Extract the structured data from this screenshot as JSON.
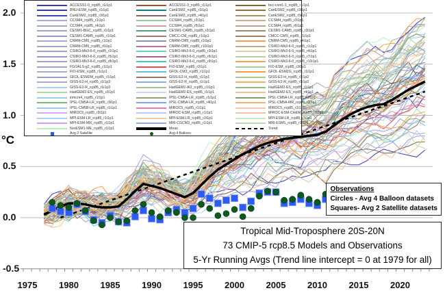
{
  "chart_data": {
    "type": "line",
    "title": [
      "Tropical Mid-Troposphere 20S-20N",
      "73 CMIP-5 rcp8.5 Models and Observations",
      "5-Yr Running Avgs (Trend line intercept = 0 at 1979 for all)"
    ],
    "ylabel": "°C",
    "xlabel": "",
    "xlim": [
      1975,
      2024
    ],
    "ylim": [
      -0.5,
      2.0
    ],
    "xticks": [
      "1975",
      "1980",
      "1985",
      "1990",
      "1995",
      "2000",
      "2005",
      "2010",
      "2015",
      "2020"
    ],
    "yticks": [
      "2.0",
      "1.5",
      "1.0",
      "0.5",
      "0.0",
      "-0.5"
    ],
    "grid": true,
    "legend_placement": "top-left",
    "mean": {
      "name": "Mean",
      "color": "#000000",
      "x": [
        1977,
        1978,
        1979,
        1980,
        1981,
        1982,
        1983,
        1984,
        1985,
        1986,
        1987,
        1988,
        1989,
        1990,
        1991,
        1992,
        1993,
        1994,
        1995,
        1996,
        1997,
        1998,
        1999,
        2000,
        2001,
        2002,
        2003,
        2004,
        2005,
        2006,
        2007,
        2008,
        2009,
        2010,
        2011,
        2012,
        2013,
        2014,
        2015,
        2016,
        2017,
        2018,
        2019,
        2020,
        2021,
        2022,
        2023
      ],
      "y": [
        0.03,
        0.07,
        0.11,
        0.14,
        0.14,
        0.13,
        0.11,
        0.1,
        0.1,
        0.11,
        0.18,
        0.26,
        0.33,
        0.31,
        0.29,
        0.26,
        0.23,
        0.2,
        0.24,
        0.32,
        0.4,
        0.47,
        0.52,
        0.57,
        0.62,
        0.66,
        0.7,
        0.73,
        0.75,
        0.77,
        0.78,
        0.79,
        0.8,
        0.81,
        0.84,
        0.9,
        0.96,
        1.01,
        1.05,
        1.08,
        1.1,
        1.11,
        1.15,
        1.2,
        1.25,
        1.29,
        1.33
      ]
    },
    "trend": {
      "intercept_year": 1979,
      "intercept_value": 0,
      "slope_per_year": 0.028,
      "end_year": 2023
    },
    "satellite": {
      "name": "Avg 2 Satellite",
      "color": "#2f5cf0",
      "x": [
        1978,
        1979,
        1980,
        1981,
        1982,
        1983,
        1984,
        1985,
        1986,
        1987,
        1988,
        1989,
        1990,
        1991,
        1992,
        1993,
        1994,
        1995,
        1996,
        1997,
        1998,
        1999,
        2000,
        2001,
        2002,
        2003,
        2004,
        2005,
        2006,
        2007,
        2008,
        2009,
        2010,
        2011
      ],
      "y": [
        0.09,
        0.06,
        0.05,
        0.13,
        0.06,
        -0.02,
        -0.05,
        0.02,
        -0.04,
        -0.05,
        0.01,
        0.07,
        -0.01,
        -0.02,
        0.05,
        0.08,
        0.05,
        0.09,
        0.23,
        0.19,
        0.14,
        0.17,
        0.19,
        0.1,
        0.16,
        0.24,
        0.25,
        0.25,
        0.14,
        0.15,
        0.18,
        0.14,
        0.12,
        0.18
      ]
    },
    "balloon": {
      "name": "Avg 4 Balloon",
      "color": "#0d5a1a",
      "x": [
        1978,
        1979,
        1980,
        1981,
        1982,
        1983,
        1984,
        1985,
        1986,
        1987,
        1988,
        1989,
        1990,
        1991,
        1992,
        1993,
        1994,
        1995,
        1996,
        1997,
        1998,
        1999,
        2000,
        2001,
        2002,
        2003,
        2004,
        2005,
        2006,
        2007,
        2008,
        2009,
        2010,
        2011
      ],
      "y": [
        0.15,
        0.12,
        0.1,
        0.14,
        0.07,
        -0.03,
        -0.07,
        0.0,
        -0.04,
        -0.03,
        0.07,
        0.13,
        0.05,
        0.01,
        0.07,
        0.05,
        0.0,
        0.0,
        0.13,
        0.09,
        0.02,
        0.04,
        0.08,
        0.01,
        0.09,
        0.21,
        0.26,
        0.25,
        0.17,
        0.18,
        0.22,
        0.18,
        0.15,
        0.23
      ]
    },
    "legend_columns": [
      [
        "ACCESS1-0_rcp85_r1i1p1",
        "BNU-ESM_rcp85_r1i1p1",
        "CanESM2_rcp85_r3i1p1",
        "CCSM4_rcp85_r1i1p1",
        "CCSM4_rcp85_r4i1p1",
        "CESM1-BGC_rcp85_r1i1p1",
        "CESM1-CAM5_rcp85_r1i1p1",
        "CNRM-CM5_rcp85_r1i1p1",
        "CNRM-CM5_rcp85_r6i1p1",
        "CSIRO-Mk3-6-0_rcp85_r2i1p1",
        "CSIRO-Mk3-6-0_rcp85_r5i1p1",
        "CSIRO-Mk3-6-0_rcp85_r8i1p1",
        "FGOALS-g2_rcp85_r1i1p1",
        "FIO-ESM_rcp85_r1i1p1",
        "GFDL-ESM2M_rcp85_r1i1p1",
        "GISS-E2-H_rcp85_r1i1p3",
        "GISS-E2-R_rcp85_r1i1p3",
        "HadGEM2-ES_rcp85_r2i1p1",
        "inmcm4_rcp85_r1i1p1",
        "IPSL-CM5A-LR_rcp85_r3i1p1",
        "IPSL-CM5B-LR_rcp85_r1i1p1",
        "MIROC5_rcp85_r3i1p1",
        "MPI-ESM-LR_rcp85_r1i1p1",
        "MPI-ESM-MR_rcp85_r1i1p1",
        "NorESM1-ME_rcp85_r1i1p1"
      ],
      [
        "ACCESS1-3_rcp85_r1i1p1",
        "CanESM2_rcp85_r1i1p1",
        "CanESM2_rcp85_r4i1p1",
        "CCSM4_rcp85_r2i1p1",
        "CCSM4_rcp85_r5i1p1",
        "CESM1-CAM5_rcp85_r2i1p1",
        "CMCC-CM_rcp85_r1i1p1",
        "CNRM-CM5_rcp85_r2i1p1",
        "CNRM-CM5_rcp85_r10i1p1",
        "CSIRO-Mk3-6-0_rcp85_r3i1p1",
        "CSIRO-Mk3-6-0_rcp85_r6i1p1",
        "CSIRO-Mk3-6-0_rcp85_r9i1p1",
        "FIO-ESM_rcp85_r2i1p1",
        "GFDL-CM3_rcp85_r1i1p1",
        "GISS-E2-H_rcp85_r1i1p1",
        "GISS-E2-R_rcp85_r1i1p1",
        "HadGEM2-AO_rcp85_r1i1p1",
        "HadGEM2-ES_rcp85_r1i1p1",
        "IPSL-CM5A-LR_rcp85_r1i1p1",
        "IPSL-CM5A-LR_rcp85_r4i1p1",
        "MIROC5_rcp85_r1i1p1",
        "MIROC-ESM_rcp85_r1i1p1",
        "MPI-ESM-LR_rcp85_r2i1p1",
        "MRI-CGCM3_rcp85_r1i1p1"
      ],
      [
        "bcc-csm1-1_rcp85_r1i1p1",
        "CanESM2_rcp85_r2i1p1",
        "CanESM2_rcp85_r5i1p1",
        "CCSM4_rcp85_r3i1p1",
        "CCSM4_rcp85_r6i1p1",
        "CESM1-CAM5_rcp85_r3i1p1",
        "CMCC-CMS_rcp85_r1i1p1",
        "CNRM-CM5_rcp85_r4i1p1",
        "CSIRO-Mk3-6-0_rcp85_r1i1p1",
        "CSIRO-Mk3-6-0_rcp85_r4i1p1",
        "CSIRO-Mk3-6-0_rcp85_r7i1p1",
        "CSIRO-Mk3-6-0_rcp85_r10i1p1",
        "FIO-ESM_rcp85_r3i1p1",
        "GFDL-ESM2G_rcp85_r1i1p1",
        "GISS-E2-H_rcp85_r1i1p2",
        "GISS-E2-R_rcp85_r1i1p2",
        "HadGEM2-ES_rcp85_r1i1p1",
        "HadGEM2-ES_rcp85_r4i1p1",
        "IPSL-CM5A-LR_rcp85_r2i1p1",
        "IPSL-CM5A-MR_rcp85_r1i1p1",
        "MIROC5_rcp85_r2i1p1",
        "MIROC-ESM-CHEM_rcp85_r1i1p1",
        "MPI-ESM-LR_rcp85_r3i1p1",
        "MRI-ESM1_rcp85_r1i1p1"
      ]
    ],
    "legend_column_colors": [
      [
        "#3a3aa8",
        "#2e3cb0",
        "#3848b0",
        "#a8acd8",
        "#a0a4d4",
        "#9ca0cc",
        "#9898c8",
        "#a4a8d8",
        "#a0a4d4",
        "#9ca0d0",
        "#9898cc",
        "#a0a0d0",
        "#9ca0cc",
        "#a8a8d8",
        "#9c9cc8",
        "#a8a8d0",
        "#a8d0f8",
        "#b0d8a0",
        "#9cc8f0",
        "#80b868",
        "#a0c8f0",
        "#d8a8f8",
        "#a8d0f8",
        "#c8a0f8",
        "#c0f0c0"
      ],
      [
        "#a05030",
        "#108080",
        "#905858",
        "#90c8a0",
        "#c8a0a0",
        "#50a070",
        "#a07878",
        "#8890b8",
        "#c070a0",
        "#60d0d0",
        "#a06090",
        "#40c8c0",
        "#e85050",
        "#60c0e0",
        "#a07070",
        "#80b0f0",
        "#a8c098",
        "#c8d8f0",
        "#90a078",
        "#70a8f0",
        "#f078b0",
        "#b8c8f8",
        "#f8c898",
        "#90a8e8"
      ],
      [
        "#806040",
        "#907040",
        "#b09060",
        "#c8b090",
        "#c0a080",
        "#a08868",
        "#a08060",
        "#f8a050",
        "#c8a880",
        "#e8c8a0",
        "#b8d0a8",
        "#f8a058",
        "#a8c898",
        "#f8a040",
        "#a8c898",
        "#f8b060",
        "#98b888",
        "#f8c090",
        "#80a070",
        "#f8b070",
        "#f8c8a8",
        "#f8c0a0",
        "#c8e8c0",
        "#c0d8b0"
      ]
    ],
    "trend_legend_label": "Trend"
  },
  "observations_box": {
    "heading": "Observations",
    "circles": "Circles - Avg 4 Balloon datasets",
    "squares": "Squares- Avg 2 Satellite datasets"
  }
}
